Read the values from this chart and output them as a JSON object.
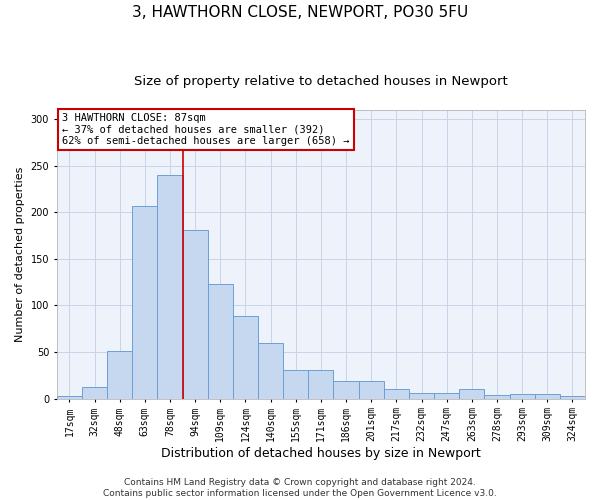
{
  "title1": "3, HAWTHORN CLOSE, NEWPORT, PO30 5FU",
  "title2": "Size of property relative to detached houses in Newport",
  "xlabel": "Distribution of detached houses by size in Newport",
  "ylabel": "Number of detached properties",
  "categories": [
    "17sqm",
    "32sqm",
    "48sqm",
    "63sqm",
    "78sqm",
    "94sqm",
    "109sqm",
    "124sqm",
    "140sqm",
    "155sqm",
    "171sqm",
    "186sqm",
    "201sqm",
    "217sqm",
    "232sqm",
    "247sqm",
    "263sqm",
    "278sqm",
    "293sqm",
    "309sqm",
    "324sqm"
  ],
  "values": [
    3,
    12,
    51,
    207,
    240,
    181,
    123,
    89,
    60,
    31,
    31,
    19,
    19,
    10,
    6,
    6,
    10,
    4,
    5,
    5,
    3
  ],
  "bar_color": "#c5d8f0",
  "bar_edge_color": "#6a9fd8",
  "grid_color": "#c8d4e8",
  "vline_x": 4.5,
  "vline_color": "#cc0000",
  "annotation_text": "3 HAWTHORN CLOSE: 87sqm\n← 37% of detached houses are smaller (392)\n62% of semi-detached houses are larger (658) →",
  "annotation_box_color": "#ffffff",
  "annotation_box_edge": "#cc0000",
  "ylim": [
    0,
    310
  ],
  "yticks": [
    0,
    50,
    100,
    150,
    200,
    250,
    300
  ],
  "footnote": "Contains HM Land Registry data © Crown copyright and database right 2024.\nContains public sector information licensed under the Open Government Licence v3.0.",
  "title1_fontsize": 11,
  "title2_fontsize": 9.5,
  "xlabel_fontsize": 9,
  "ylabel_fontsize": 8,
  "tick_fontsize": 7,
  "footnote_fontsize": 6.5,
  "annotation_fontsize": 7.5
}
